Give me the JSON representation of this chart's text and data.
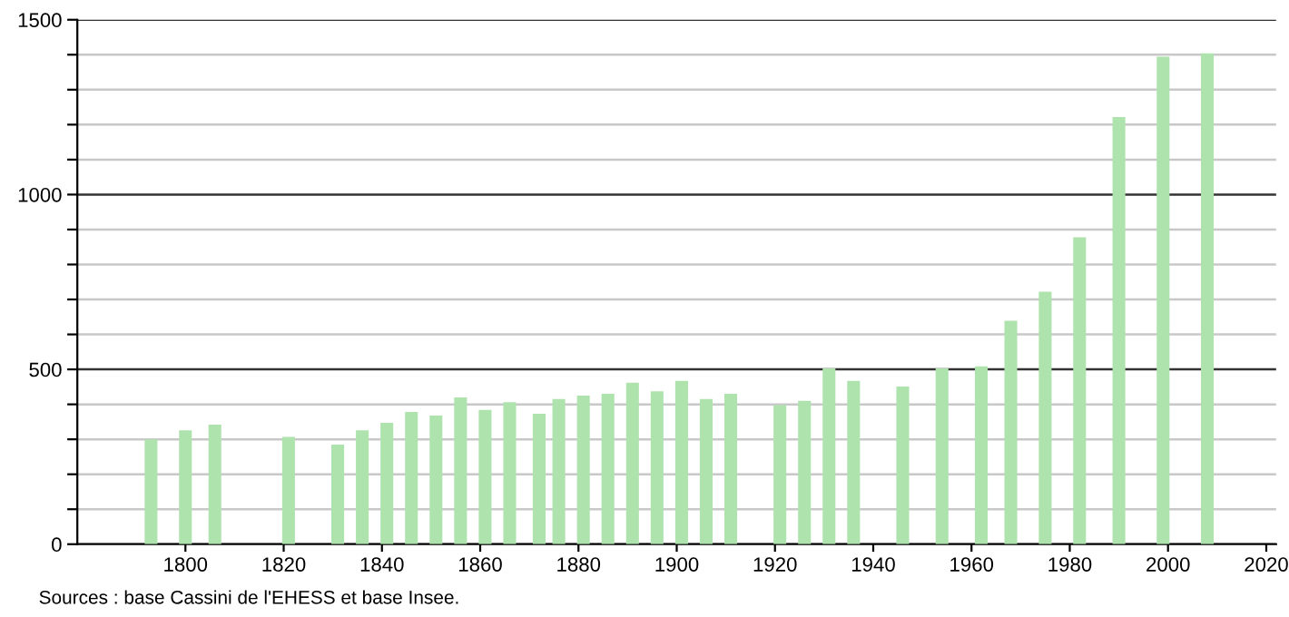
{
  "chart_data": {
    "type": "bar",
    "x": [
      1793,
      1800,
      1806,
      1821,
      1831,
      1836,
      1841,
      1846,
      1851,
      1856,
      1861,
      1866,
      1872,
      1876,
      1881,
      1886,
      1891,
      1896,
      1901,
      1906,
      1911,
      1921,
      1926,
      1931,
      1936,
      1946,
      1954,
      1962,
      1968,
      1975,
      1982,
      1990,
      1999,
      2008
    ],
    "values": [
      300,
      326,
      342,
      307,
      285,
      326,
      347,
      378,
      368,
      420,
      384,
      406,
      373,
      415,
      425,
      430,
      462,
      437,
      467,
      415,
      430,
      398,
      410,
      503,
      467,
      451,
      503,
      509,
      639,
      722,
      878,
      1222,
      1394,
      1404
    ],
    "color": "#aee3ad",
    "xlim": [
      1778,
      2022
    ],
    "xticks": [
      1800,
      1820,
      1840,
      1860,
      1880,
      1900,
      1920,
      1940,
      1960,
      1980,
      2000,
      2020
    ],
    "ylim": [
      0,
      1500
    ],
    "yticks": [
      0,
      {
        "value": 100,
        "label": null
      },
      {
        "value": 200,
        "label": null
      },
      {
        "value": 300,
        "label": null
      },
      {
        "value": 400,
        "label": null
      },
      500,
      {
        "value": 600,
        "label": null
      },
      {
        "value": 700,
        "label": null
      },
      {
        "value": 800,
        "label": null
      },
      {
        "value": 900,
        "label": null
      },
      1000,
      {
        "value": 1100,
        "label": null
      },
      {
        "value": 1200,
        "label": null
      },
      {
        "value": 1300,
        "label": null
      },
      {
        "value": 1400,
        "label": null
      },
      1500
    ],
    "grid": "y",
    "annotations": [
      "Sources : base Cassini de l'EHESS et base Insee."
    ]
  }
}
